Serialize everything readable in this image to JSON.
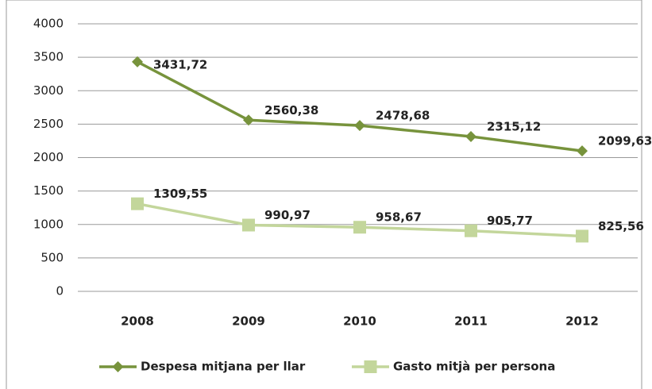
{
  "chart_data": {
    "type": "line",
    "categories": [
      "2008",
      "2009",
      "2010",
      "2011",
      "2012"
    ],
    "series": [
      {
        "name": "Despesa mitjana per llar",
        "color": "#77933c",
        "marker": "diamond",
        "values": [
          3431.72,
          2560.38,
          2478.68,
          2315.12,
          2099.63
        ],
        "value_labels": [
          "3431,72",
          "2560,38",
          "2478,68",
          "2315,12",
          "2099,63"
        ]
      },
      {
        "name": "Gasto mitjà per persona",
        "color": "#c3d69b",
        "marker": "square",
        "values": [
          1309.55,
          990.97,
          958.67,
          905.77,
          825.56
        ],
        "value_labels": [
          "1309,55",
          "990,97",
          "958,67",
          "905,77",
          "825,56"
        ]
      }
    ],
    "ylim": [
      0,
      4000
    ],
    "yticks": [
      0,
      500,
      1000,
      1500,
      2000,
      2500,
      3000,
      3500,
      4000
    ],
    "grid": true,
    "legend": "bottom"
  }
}
